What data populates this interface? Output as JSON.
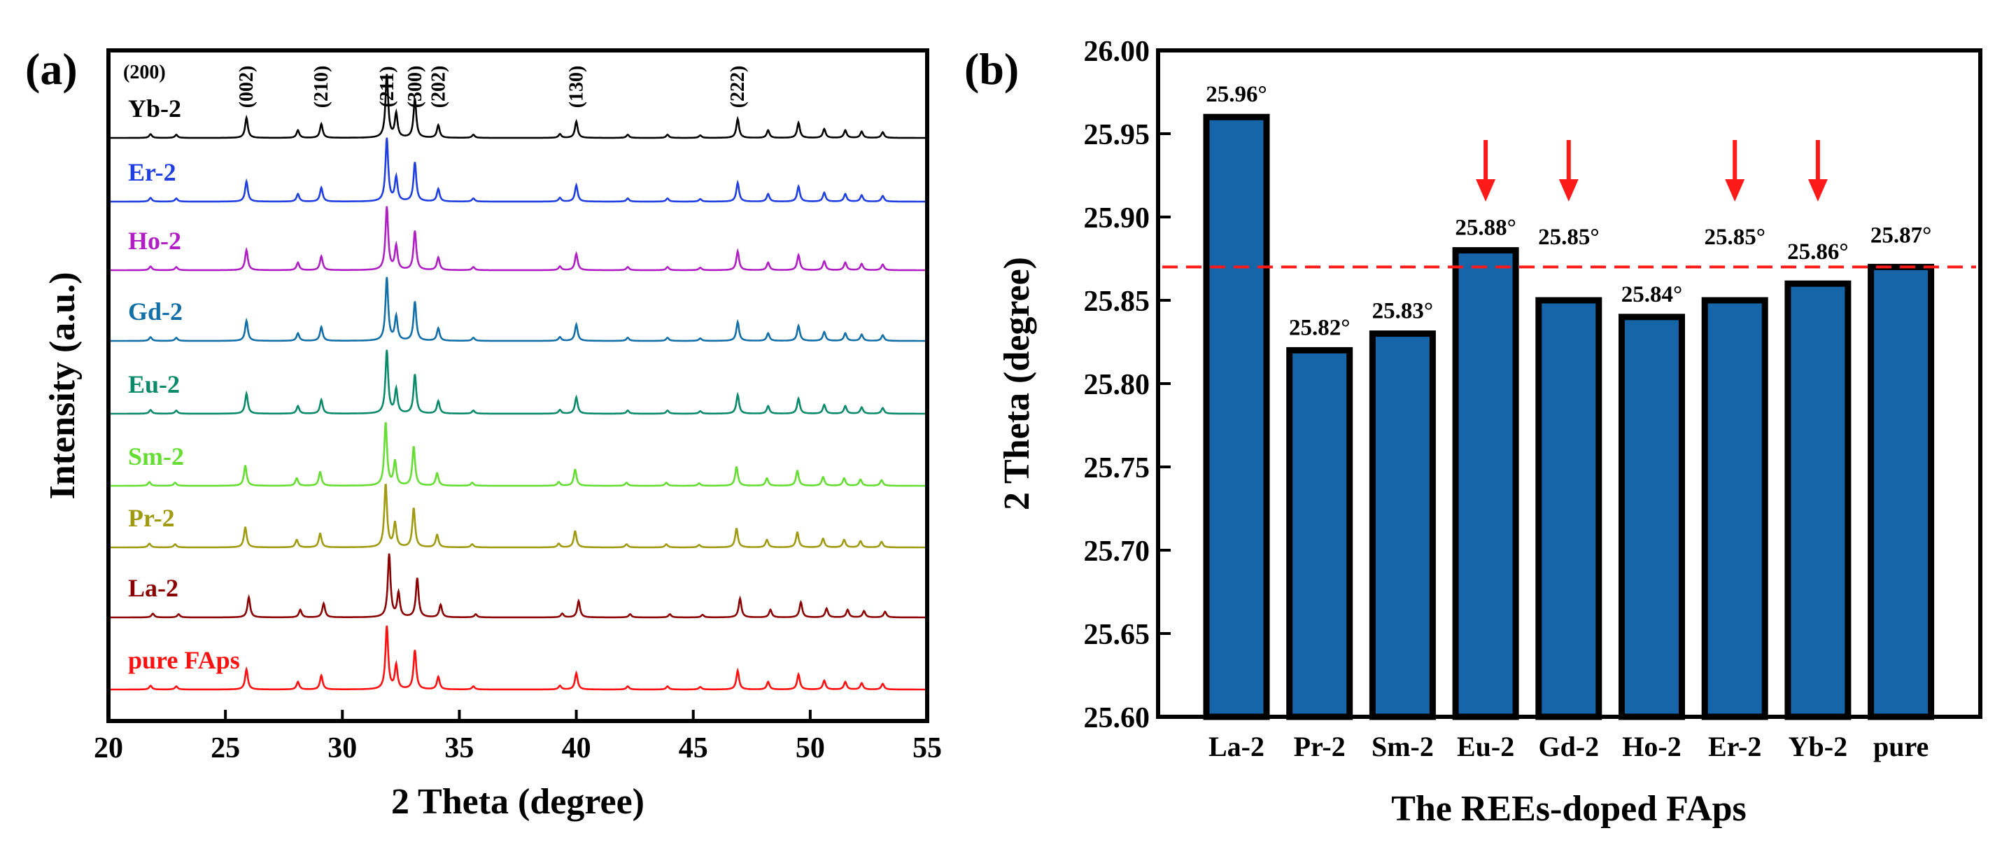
{
  "chart_data": [
    {
      "panel_label": "(a)",
      "type": "line",
      "xlabel": "2 Theta (degree)",
      "ylabel": "Intensity (a.u.)",
      "xlim": [
        20,
        55
      ],
      "xticks": [
        "20",
        "25",
        "30",
        "35",
        "40",
        "45",
        "50",
        "55"
      ],
      "peak_labels": [
        {
          "label": "(200)",
          "x": 21.8
        },
        {
          "label": "(002)",
          "x": 25.9
        },
        {
          "label": "(210)",
          "x": 29.1
        },
        {
          "label": "(211)",
          "x": 31.9
        },
        {
          "label": "(300)",
          "x": 33.1
        },
        {
          "label": "(202)",
          "x": 34.1
        },
        {
          "label": "(130)",
          "x": 40.0
        },
        {
          "label": "(222)",
          "x": 46.9
        }
      ],
      "peaks": [
        {
          "x": 21.8,
          "h": 0.06
        },
        {
          "x": 22.9,
          "h": 0.05
        },
        {
          "x": 25.9,
          "h": 0.32
        },
        {
          "x": 28.1,
          "h": 0.12
        },
        {
          "x": 29.1,
          "h": 0.22
        },
        {
          "x": 31.9,
          "h": 1.0
        },
        {
          "x": 32.3,
          "h": 0.38
        },
        {
          "x": 33.1,
          "h": 0.62
        },
        {
          "x": 34.1,
          "h": 0.2
        },
        {
          "x": 35.6,
          "h": 0.05
        },
        {
          "x": 39.3,
          "h": 0.06
        },
        {
          "x": 40.0,
          "h": 0.26
        },
        {
          "x": 42.2,
          "h": 0.05
        },
        {
          "x": 43.9,
          "h": 0.05
        },
        {
          "x": 45.3,
          "h": 0.04
        },
        {
          "x": 46.9,
          "h": 0.3
        },
        {
          "x": 48.2,
          "h": 0.12
        },
        {
          "x": 49.5,
          "h": 0.24
        },
        {
          "x": 50.6,
          "h": 0.14
        },
        {
          "x": 51.5,
          "h": 0.12
        },
        {
          "x": 52.2,
          "h": 0.1
        },
        {
          "x": 53.1,
          "h": 0.09
        }
      ],
      "series": [
        {
          "name": "Yb-2",
          "color": "#000000",
          "shift": 0.0
        },
        {
          "name": "Er-2",
          "color": "#1f3fe0",
          "shift": 0.0
        },
        {
          "name": "Ho-2",
          "color": "#b01fc4",
          "shift": 0.0
        },
        {
          "name": "Gd-2",
          "color": "#136fa8",
          "shift": 0.0
        },
        {
          "name": "Eu-2",
          "color": "#0a8a6a",
          "shift": 0.0
        },
        {
          "name": "Sm-2",
          "color": "#66dd33",
          "shift": -0.05
        },
        {
          "name": "Pr-2",
          "color": "#a09a10",
          "shift": -0.05
        },
        {
          "name": "La-2",
          "color": "#8b0000",
          "shift": 0.1
        },
        {
          "name": "pure FAps",
          "color": "#ff1010",
          "shift": 0.0
        }
      ]
    },
    {
      "panel_label": "(b)",
      "type": "bar",
      "xlabel": "The REEs-doped FAps",
      "ylabel": "2 Theta (degree)",
      "ylim": [
        25.6,
        26.0
      ],
      "yticks": [
        "25.60",
        "25.65",
        "25.70",
        "25.75",
        "25.80",
        "25.85",
        "25.90",
        "25.95",
        "26.00"
      ],
      "categories": [
        "La-2",
        "Pr-2",
        "Sm-2",
        "Eu-2",
        "Gd-2",
        "Ho-2",
        "Er-2",
        "Yb-2",
        "pure"
      ],
      "values": [
        25.96,
        25.82,
        25.83,
        25.88,
        25.85,
        25.84,
        25.85,
        25.86,
        25.87
      ],
      "value_labels": [
        "25.96°",
        "25.82°",
        "25.83°",
        "25.88°",
        "25.85°",
        "25.84°",
        "25.85°",
        "25.86°",
        "25.87°"
      ],
      "bar_color": "#1565a8",
      "reference_line": {
        "y": 25.87,
        "color": "#ff1a1a",
        "style": "dashed"
      },
      "arrows_on": [
        "Eu-2",
        "Gd-2",
        "Er-2",
        "Yb-2"
      ],
      "arrow_color": "#ff1a1a"
    }
  ]
}
